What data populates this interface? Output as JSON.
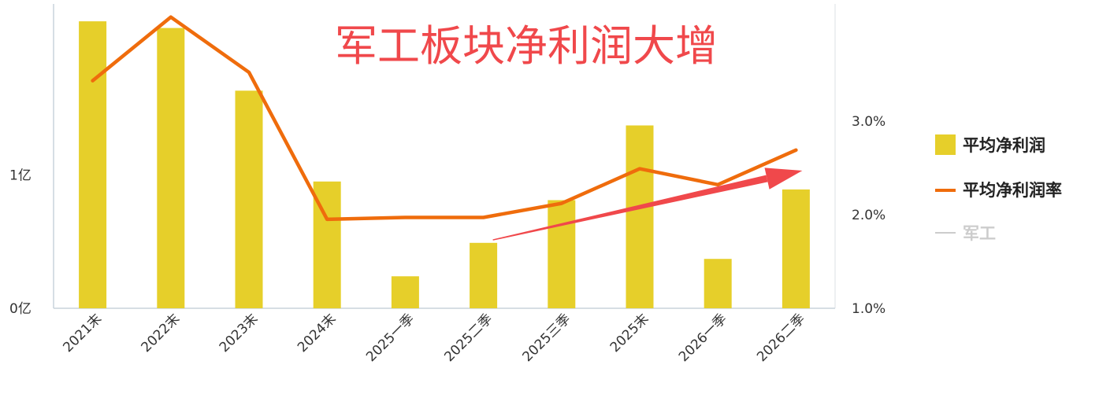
{
  "chart_data": {
    "type": "bar",
    "title": "军工板块净利润大增",
    "categories": [
      "2021末",
      "2022末",
      "2023末",
      "2024末",
      "2025一季",
      "2025二季",
      "2025三季",
      "2025末",
      "2026一季",
      "2026二季"
    ],
    "series": [
      {
        "name": "平均净利润",
        "type": "bar",
        "axis": "left",
        "color": "#e6cf2a",
        "values": [
          2.15,
          2.1,
          1.63,
          0.95,
          0.24,
          0.49,
          0.81,
          1.37,
          0.37,
          0.89
        ]
      },
      {
        "name": "平均净利润率",
        "type": "line",
        "axis": "right",
        "color": "#ef6c0c",
        "values": [
          3.43,
          4.11,
          3.52,
          1.95,
          1.97,
          1.97,
          2.12,
          2.49,
          2.32,
          2.69
        ]
      }
    ],
    "left_axis": {
      "ticks": [
        0,
        1
      ],
      "tick_labels": [
        "0亿",
        "1亿"
      ],
      "range": [
        0,
        2.28
      ]
    },
    "right_axis": {
      "ticks": [
        1.0,
        2.0,
        3.0
      ],
      "tick_labels": [
        "1.0%",
        "2.0%",
        "3.0%"
      ],
      "range": [
        1.0,
        4.25
      ]
    },
    "legend": {
      "placement": "right",
      "items": [
        {
          "label": "平均净利润",
          "color": "#e6cf2a",
          "marker": "square"
        },
        {
          "label": "平均净利润率",
          "color": "#ef6c0c",
          "marker": "line"
        },
        {
          "label": "军工",
          "color": "#cccccc",
          "marker": "line"
        }
      ]
    },
    "annotation": {
      "type": "trend-arrow",
      "color": "#f0484b",
      "from": [
        "2025二季",
        1.73
      ],
      "to": [
        "2026二季",
        2.47
      ]
    },
    "grid": false
  }
}
